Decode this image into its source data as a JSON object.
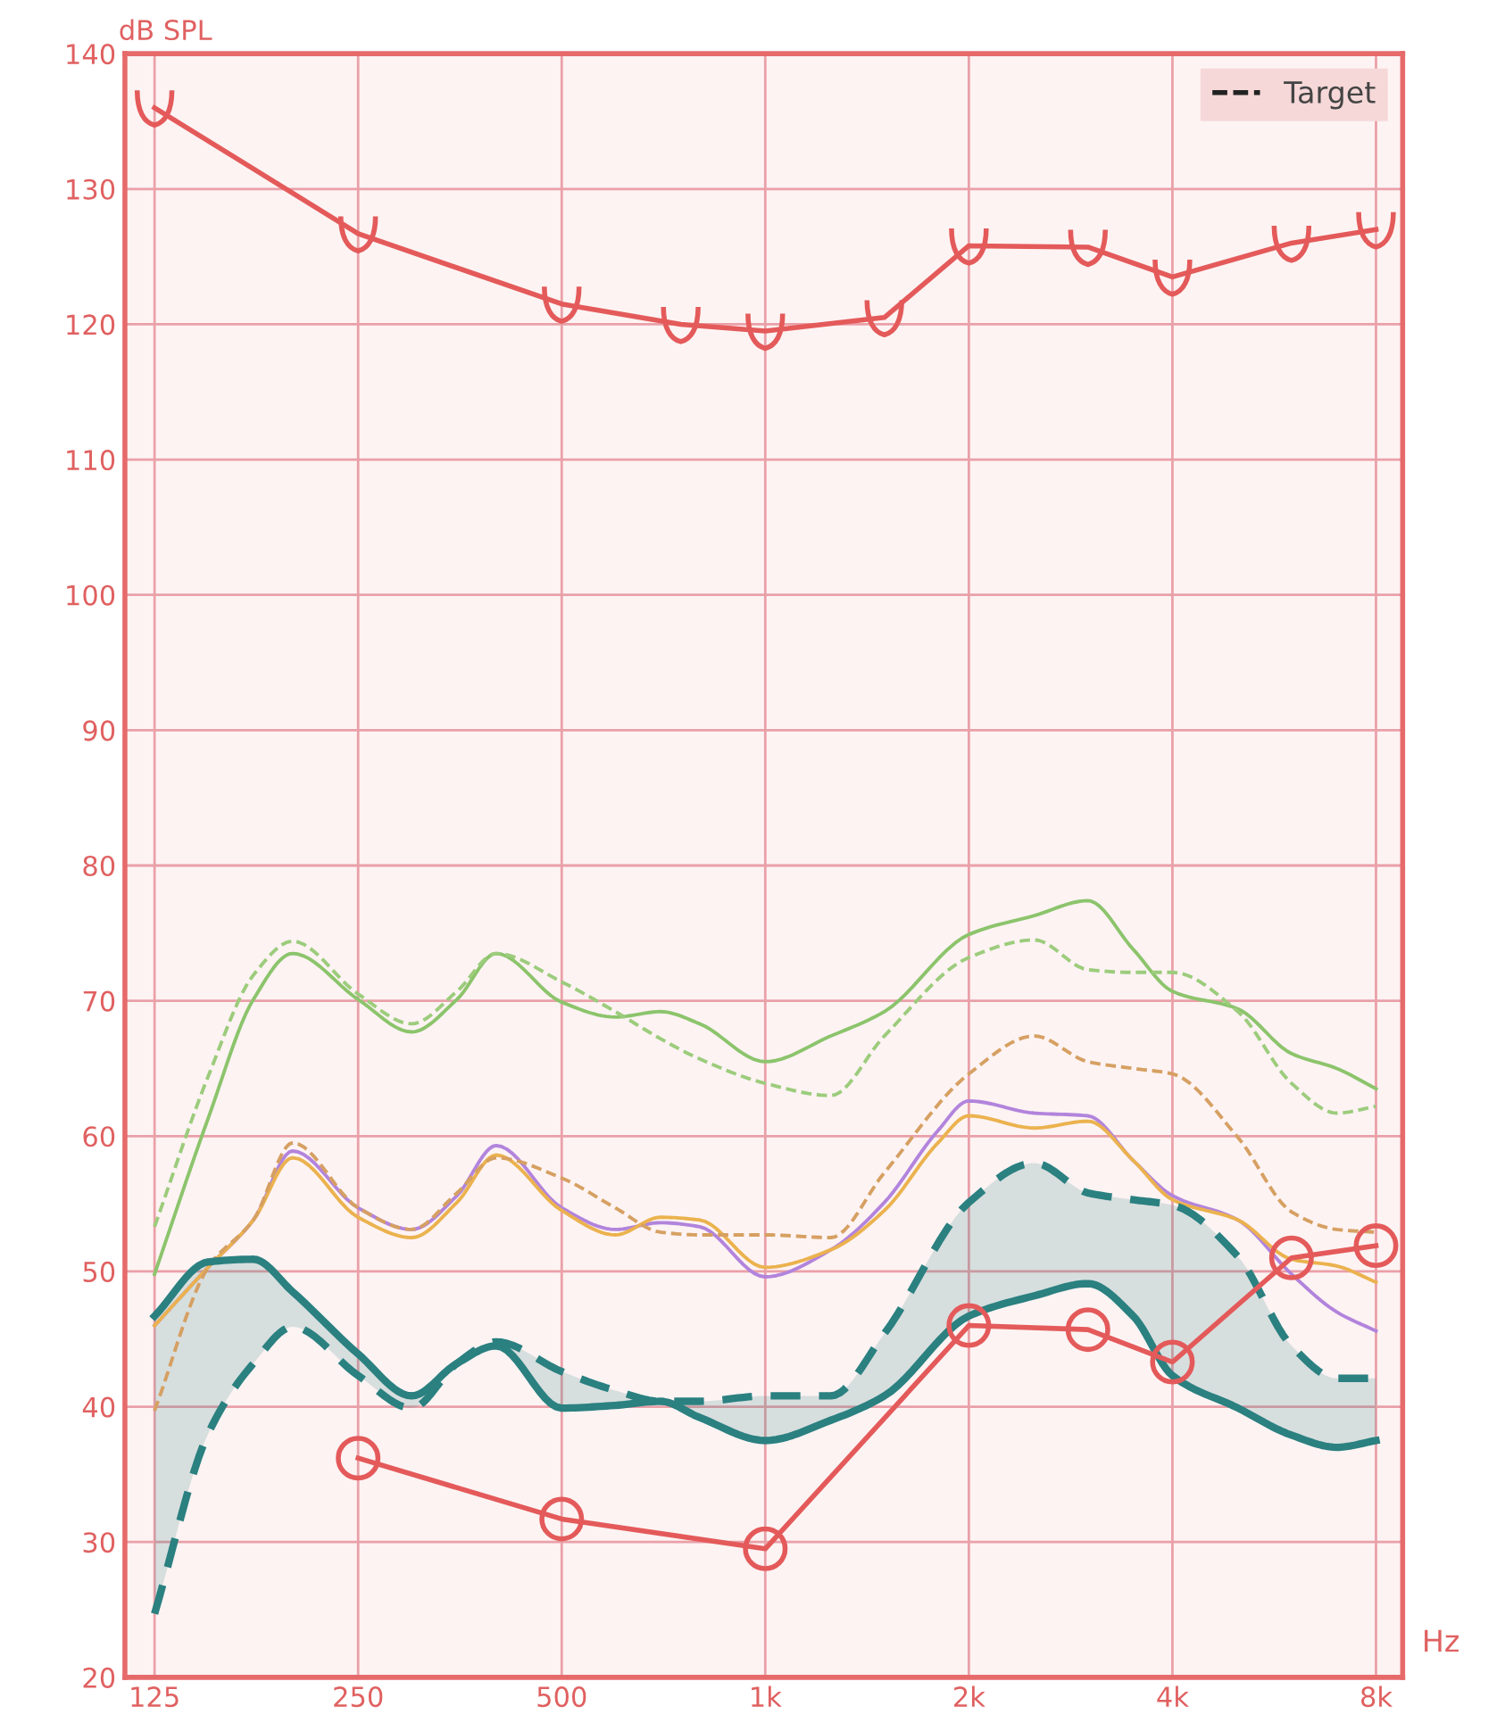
{
  "chart_data": {
    "type": "line",
    "xlabel": "Hz",
    "ylabel": "dB SPL",
    "log": "x",
    "xlim": [
      113,
      8760
    ],
    "ylim": [
      20,
      140
    ],
    "xticks": [
      {
        "value": 125,
        "label": "125"
      },
      {
        "value": 250,
        "label": "250"
      },
      {
        "value": 500,
        "label": "500"
      },
      {
        "value": 1000,
        "label": "1k"
      },
      {
        "value": 2000,
        "label": "2k"
      },
      {
        "value": 4000,
        "label": "4k"
      },
      {
        "value": 8000,
        "label": "8k"
      }
    ],
    "yticks": [
      20,
      30,
      40,
      50,
      60,
      70,
      80,
      90,
      100,
      110,
      120,
      130,
      140
    ],
    "grid": true,
    "annotations": [
      "Target"
    ],
    "series": [
      {
        "color": "#8cc46c",
        "line_style": "solid",
        "marker": "none",
        "x": [
          125,
          150,
          175,
          200,
          250,
          300,
          350,
          400,
          500,
          600,
          700,
          800,
          1000,
          1250,
          1500,
          2000,
          2500,
          3000,
          3500,
          4000,
          5000,
          6000,
          7000,
          8000
        ],
        "values": [
          49.8,
          61.3,
          70.1,
          73.5,
          70.1,
          67.7,
          70.1,
          73.5,
          69.9,
          68.8,
          69.2,
          68.3,
          65.5,
          67.4,
          69.2,
          74.9,
          76.3,
          77.4,
          73.8,
          70.7,
          69.4,
          66.1,
          65,
          63.5
        ]
      },
      {
        "color": "#9ccc7c",
        "line_style": "dashed",
        "marker": "none",
        "x": [
          125,
          150,
          175,
          200,
          250,
          300,
          350,
          400,
          500,
          600,
          700,
          800,
          1000,
          1250,
          1500,
          2000,
          2500,
          3000,
          3500,
          4000,
          5000,
          6000,
          7000,
          8000
        ],
        "values": [
          53.3,
          64.4,
          71.9,
          74.4,
          70.5,
          68.3,
          70.7,
          73.5,
          71.4,
          69.2,
          67.2,
          65.7,
          63.9,
          63,
          67.4,
          73.2,
          74.5,
          72.3,
          72.1,
          72.1,
          69.2,
          63.9,
          61.7,
          62.2
        ]
      },
      {
        "color": "#b284dc",
        "line_style": "solid",
        "marker": "none",
        "x": [
          125,
          150,
          175,
          200,
          250,
          300,
          350,
          400,
          500,
          600,
          700,
          800,
          1000,
          1250,
          1500,
          1800,
          2000,
          2500,
          3000,
          3500,
          4000,
          5000,
          6000,
          7000,
          8000
        ],
        "values": [
          46,
          50.3,
          53.8,
          58.9,
          54.7,
          53.1,
          55.6,
          59.3,
          54.7,
          53.1,
          53.6,
          53.3,
          49.6,
          51.6,
          55.1,
          60.4,
          62.6,
          61.7,
          61.5,
          58.2,
          55.6,
          53.8,
          49.8,
          47,
          45.6
        ]
      },
      {
        "color": "#ebb24e",
        "line_style": "solid",
        "marker": "none",
        "x": [
          125,
          150,
          175,
          200,
          250,
          300,
          350,
          400,
          500,
          600,
          700,
          800,
          1000,
          1250,
          1500,
          1800,
          2000,
          2500,
          3000,
          3500,
          4000,
          5000,
          6000,
          7000,
          8000
        ],
        "values": [
          46,
          50.3,
          53.8,
          58.4,
          54,
          52.5,
          55.1,
          58.6,
          54.5,
          52.7,
          54,
          53.8,
          50.3,
          51.6,
          54.5,
          59.5,
          61.5,
          60.6,
          61.1,
          58.2,
          55.3,
          53.8,
          50.9,
          50.4,
          49.2
        ]
      },
      {
        "color": "#d6a062",
        "line_style": "dashed",
        "marker": "none",
        "x": [
          125,
          150,
          175,
          200,
          250,
          300,
          350,
          400,
          500,
          600,
          700,
          800,
          1000,
          1250,
          1500,
          2000,
          2500,
          3000,
          3500,
          4000,
          5000,
          6000,
          7000,
          8000
        ],
        "values": [
          39.7,
          50.3,
          53.8,
          59.5,
          54.7,
          53.1,
          55.8,
          58.4,
          56.9,
          54.7,
          52.9,
          52.7,
          52.7,
          52.5,
          57.3,
          64.6,
          67.4,
          65.5,
          65,
          64.6,
          59.9,
          54.4,
          53.1,
          52.9
        ]
      },
      {
        "color": "#2b8080",
        "line_style": "solid",
        "marker": "none",
        "x": [
          125,
          150,
          175,
          200,
          250,
          300,
          350,
          400,
          500,
          600,
          700,
          800,
          1000,
          1250,
          1500,
          2000,
          2500,
          3000,
          3500,
          4000,
          5000,
          6000,
          7000,
          8000
        ],
        "values": [
          46.7,
          50.7,
          50.9,
          48.5,
          43.9,
          40.8,
          43.2,
          44.5,
          39.9,
          40.1,
          40.4,
          39.2,
          37.5,
          39,
          40.8,
          46.7,
          48.2,
          49.1,
          46.7,
          42.3,
          39.9,
          37.9,
          37,
          37.5
        ]
      },
      {
        "color": "#2b8080",
        "line_style": "dashed",
        "marker": "none",
        "x": [
          125,
          150,
          175,
          200,
          250,
          300,
          350,
          400,
          500,
          600,
          700,
          800,
          1000,
          1250,
          1500,
          2000,
          2500,
          3000,
          3500,
          4000,
          5000,
          6000,
          7000,
          8000
        ],
        "values": [
          24.7,
          38,
          43.2,
          45.9,
          42.3,
          39.9,
          43.2,
          44.8,
          42.6,
          41.2,
          40.4,
          40.4,
          40.8,
          40.8,
          45.4,
          55.1,
          58,
          55.8,
          55.3,
          54.9,
          51.1,
          44.5,
          42.1,
          42.1
        ],
        "lower": [
          46.7,
          50.7,
          50.9,
          48.5,
          43.9,
          40.8,
          43.2,
          44.5,
          39.9,
          40.1,
          40.4,
          39.2,
          37.5,
          39,
          40.8,
          46.7,
          48.2,
          49.1,
          46.7,
          42.3,
          39.9,
          37.9,
          37,
          37.5
        ],
        "upper": [
          24.7,
          38,
          43.2,
          45.9,
          42.3,
          39.9,
          43.2,
          44.8,
          42.6,
          41.2,
          40.4,
          40.4,
          40.8,
          40.8,
          45.4,
          55.1,
          58,
          55.8,
          55.3,
          54.9,
          51.1,
          44.5,
          42.1,
          42.1
        ]
      },
      {
        "color": "#e45a5a",
        "line_style": "solid",
        "marker": "circle",
        "x": [
          250,
          500,
          1000,
          2000,
          3000,
          4000,
          6000,
          8000
        ],
        "values": [
          36.2,
          31.7,
          29.5,
          46,
          45.7,
          43.3,
          51,
          51.9
        ]
      },
      {
        "color": "#e45a5a",
        "line_style": "solid",
        "marker": "cross",
        "x": [
          125,
          250,
          500,
          750,
          1000,
          1500,
          2000,
          3000,
          4000,
          6000,
          8000
        ],
        "values": [
          136,
          126.7,
          121.5,
          120,
          119.5,
          120.5,
          125.8,
          125.7,
          123.5,
          126,
          127
        ]
      }
    ]
  }
}
